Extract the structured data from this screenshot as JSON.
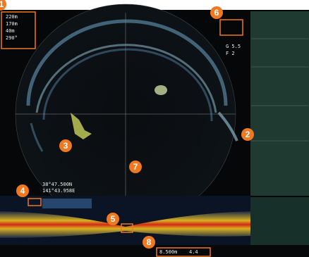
{
  "readouts": {
    "range_lines": [
      "220m",
      "170m",
      "40m",
      "290°"
    ],
    "gain": "G 5.5",
    "filter": "F 2",
    "position": [
      "38°47.500N",
      "141°43.958E"
    ],
    "bottom": "8.500m",
    "bottom_2": "4.4"
  },
  "callouts": [
    "1",
    "2",
    "3",
    "4",
    "5",
    "6",
    "7",
    "8"
  ]
}
